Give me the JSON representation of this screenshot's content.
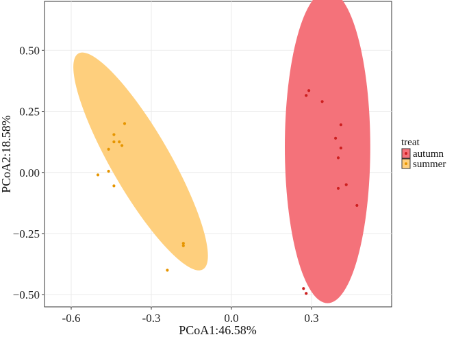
{
  "chart_data": {
    "type": "scatter",
    "title": "",
    "xlabel": "PCoA1:46.58%",
    "ylabel": "PCoA2:18.58%",
    "xlim": [
      -0.7,
      0.6
    ],
    "ylim": [
      -0.55,
      0.7
    ],
    "x_ticks": [
      -0.6,
      -0.3,
      0.0,
      0.3
    ],
    "x_tick_labels": [
      "-0.6",
      "-0.3",
      "0.0",
      "0.3"
    ],
    "y_ticks": [
      0.5,
      0.25,
      0.0,
      -0.25,
      -0.5
    ],
    "y_tick_labels": [
      "0.50",
      "0.25",
      "0.00",
      "−0.25",
      "−0.50"
    ],
    "grid": true,
    "legend": {
      "title": "treat",
      "position": "right"
    },
    "series": [
      {
        "name": "autumn",
        "color": "#cc1f1f",
        "ellipse_color": "#f4727a",
        "ellipse": {
          "center": [
            0.36,
            0.105
          ],
          "semi_x": 0.16,
          "semi_y": 0.64,
          "angle_deg": 0
        },
        "points": [
          [
            0.29,
            0.335
          ],
          [
            0.28,
            0.315
          ],
          [
            0.34,
            0.29
          ],
          [
            0.41,
            0.195
          ],
          [
            0.39,
            0.14
          ],
          [
            0.41,
            0.1
          ],
          [
            0.4,
            0.06
          ],
          [
            0.4,
            -0.065
          ],
          [
            0.43,
            -0.05
          ],
          [
            0.47,
            -0.135
          ],
          [
            0.27,
            -0.475
          ],
          [
            0.28,
            -0.495
          ]
        ]
      },
      {
        "name": "summer",
        "color": "#e69500",
        "ellipse_color": "#fecf7d",
        "ellipse": {
          "center": [
            -0.34,
            0.045
          ],
          "semi_x": 0.11,
          "semi_y": 0.51,
          "angle_deg": 30
        },
        "points": [
          [
            -0.4,
            0.2
          ],
          [
            -0.44,
            0.155
          ],
          [
            -0.44,
            0.125
          ],
          [
            -0.42,
            0.125
          ],
          [
            -0.41,
            0.11
          ],
          [
            -0.46,
            0.095
          ],
          [
            -0.46,
            0.005
          ],
          [
            -0.5,
            -0.01
          ],
          [
            -0.44,
            -0.055
          ],
          [
            -0.18,
            -0.29
          ],
          [
            -0.18,
            -0.3
          ],
          [
            -0.24,
            -0.4
          ]
        ]
      }
    ]
  }
}
